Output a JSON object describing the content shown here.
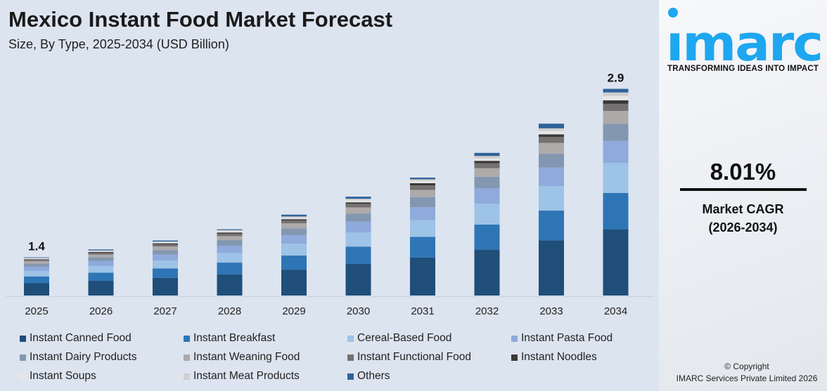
{
  "header": {
    "title": "Mexico Instant Food Market Forecast",
    "subtitle": "Size, By Type, 2025-2034 (USD Billion)"
  },
  "brand": {
    "logo_text": "imarc",
    "tagline": "TRANSFORMING IDEAS INTO IMPACT",
    "logo_color": "#1ea7f0"
  },
  "cagr": {
    "value": "8.01%",
    "label_line1": "Market CAGR",
    "label_line2": "(2026-2034)"
  },
  "copyright": {
    "line1": "© Copyright",
    "line2": "IMARC Services Private Limited 2026"
  },
  "chart_data": {
    "type": "bar",
    "stacked": true,
    "title": "Mexico Instant Food Market Forecast",
    "subtitle": "Size, By Type, 2025-2034 (USD Billion)",
    "xlabel": "",
    "ylabel": "",
    "grid": false,
    "legend_position": "bottom",
    "categories": [
      "2025",
      "2026",
      "2027",
      "2028",
      "2029",
      "2030",
      "2031",
      "2032",
      "2033",
      "2034"
    ],
    "totals": [
      1.4,
      1.47,
      1.55,
      1.65,
      1.78,
      1.94,
      2.11,
      2.33,
      2.59,
      2.9
    ],
    "total_labels": {
      "2025": "1.4",
      "2034": "2.9"
    },
    "series": [
      {
        "name": "Instant Canned Food",
        "color": "#1f4e79",
        "values": [
          0.45,
          0.47,
          0.5,
          0.53,
          0.57,
          0.62,
          0.68,
          0.75,
          0.83,
          0.93
        ]
      },
      {
        "name": "Instant Breakfast",
        "color": "#2e75b6",
        "values": [
          0.25,
          0.26,
          0.27,
          0.29,
          0.31,
          0.34,
          0.37,
          0.41,
          0.45,
          0.51
        ]
      },
      {
        "name": "Cereal-Based Food",
        "color": "#9dc3e6",
        "values": [
          0.2,
          0.21,
          0.22,
          0.24,
          0.26,
          0.28,
          0.3,
          0.34,
          0.37,
          0.42
        ]
      },
      {
        "name": "Instant Pasta Food",
        "color": "#8faadc",
        "values": [
          0.15,
          0.16,
          0.17,
          0.18,
          0.19,
          0.21,
          0.23,
          0.25,
          0.28,
          0.31
        ]
      },
      {
        "name": "Instant Dairy Products",
        "color": "#8497b0",
        "values": [
          0.12,
          0.12,
          0.13,
          0.14,
          0.15,
          0.16,
          0.18,
          0.19,
          0.21,
          0.24
        ]
      },
      {
        "name": "Instant Weaning Food",
        "color": "#aeaaaa",
        "values": [
          0.09,
          0.09,
          0.1,
          0.1,
          0.11,
          0.12,
          0.13,
          0.14,
          0.16,
          0.18
        ]
      },
      {
        "name": "Instant Functional Food",
        "color": "#767171",
        "values": [
          0.05,
          0.05,
          0.06,
          0.06,
          0.06,
          0.07,
          0.08,
          0.08,
          0.09,
          0.1
        ]
      },
      {
        "name": "Instant Noodles",
        "color": "#3b3838",
        "values": [
          0.02,
          0.03,
          0.03,
          0.03,
          0.03,
          0.03,
          0.04,
          0.04,
          0.04,
          0.05
        ]
      },
      {
        "name": "Instant Soups",
        "color": "#e7e6e6",
        "values": [
          0.03,
          0.03,
          0.03,
          0.03,
          0.03,
          0.04,
          0.04,
          0.04,
          0.05,
          0.06
        ]
      },
      {
        "name": "Instant Meat Products",
        "color": "#d0cece",
        "values": [
          0.02,
          0.02,
          0.02,
          0.03,
          0.03,
          0.03,
          0.03,
          0.04,
          0.04,
          0.05
        ]
      },
      {
        "name": "Others",
        "color": "#2e6399",
        "values": [
          0.02,
          0.03,
          0.03,
          0.02,
          0.04,
          0.04,
          0.03,
          0.05,
          0.07,
          0.05
        ]
      }
    ]
  }
}
